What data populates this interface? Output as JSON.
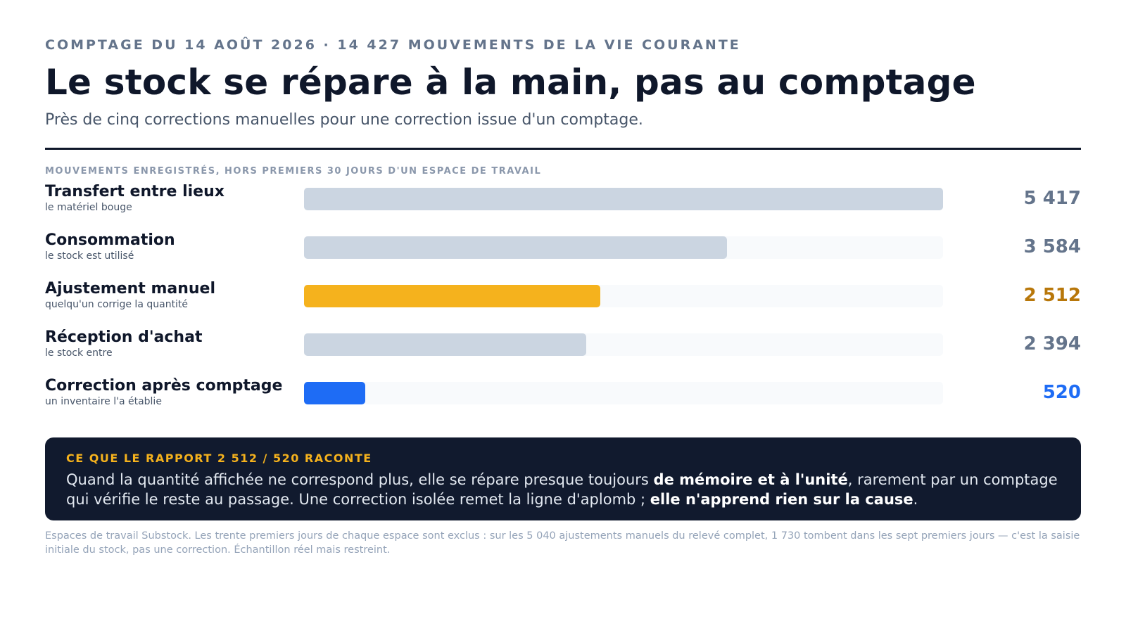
{
  "header": {
    "kicker": "COMPTAGE DU 14 AOÛT 2026 · 14 427 MOUVEMENTS DE LA VIE COURANTE",
    "title": "Le stock se répare à la main, pas au comptage",
    "subtitle": "Près de cinq corrections manuelles pour une correction issue d'un comptage."
  },
  "chart_data": {
    "type": "bar",
    "orientation": "horizontal",
    "title": "MOUVEMENTS ENREGISTRÉS, HORS PREMIERS 30 JOURS D'UN ESPACE DE TRAVAIL",
    "categories": [
      "Transfert entre lieux",
      "Consommation",
      "Ajustement manuel",
      "Réception d'achat",
      "Correction après comptage"
    ],
    "sublabels": [
      "le matériel bouge",
      "le stock est utilisé",
      "quelqu'un corrige la quantité",
      "le stock entre",
      "un inventaire l'a établie"
    ],
    "values": [
      5417,
      3584,
      2512,
      2394,
      520
    ],
    "value_labels": [
      "5 417",
      "3 584",
      "2 512",
      "2 394",
      "520"
    ],
    "xlim": [
      0,
      5417
    ],
    "bar_colors": [
      "#cbd5e1",
      "#cbd5e1",
      "#f5b21d",
      "#cbd5e1",
      "#1e6cf5"
    ],
    "value_colors": [
      "#64748b",
      "#64748b",
      "#b8770a",
      "#64748b",
      "#1e6cf5"
    ],
    "track_color": "#f8fafc",
    "grid": false,
    "legend": "none"
  },
  "callout": {
    "kicker": "CE QUE LE RAPPORT 2 512 / 520 RACONTE",
    "text_1": "Quand la quantité affichée ne correspond plus, elle se répare presque toujours ",
    "strong_1": "de mémoire et à l'unité",
    "text_2": ", rarement par un comptage qui vérifie le reste au passage. Une correction isolée remet la ligne d'aplomb ; ",
    "strong_2": "elle n'apprend rien sur la cause",
    "text_3": "."
  },
  "footnote": "Espaces de travail Substock. Les trente premiers jours de chaque espace sont exclus : sur les 5 040 ajustements manuels du relevé complet, 1 730 tombent dans les sept premiers jours — c'est la saisie initiale du stock, pas une correction. Échantillon réel mais restreint."
}
